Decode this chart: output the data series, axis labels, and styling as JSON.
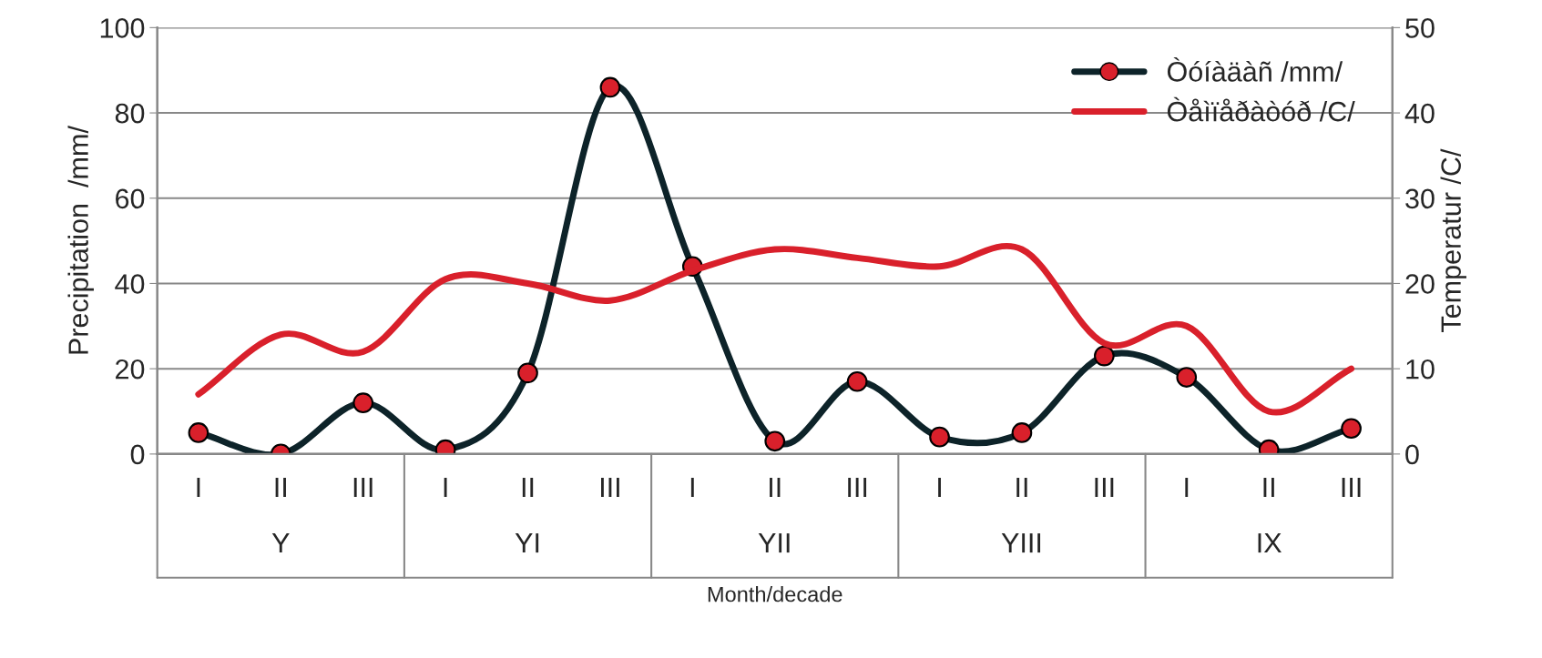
{
  "chart_data": {
    "type": "line",
    "xlabel": "Month/decade",
    "ylabel": "Precipitation  /mm/",
    "y2label": "Temperatur /C/",
    "categories": [
      "I",
      "II",
      "III",
      "I",
      "II",
      "III",
      "I",
      "II",
      "III",
      "I",
      "II",
      "III",
      "I",
      "II",
      "III"
    ],
    "series": [
      {
        "name": "Òóíàäàñ /mm/",
        "color": "#0d2329",
        "marker": "circle",
        "values": [
          5,
          0,
          12,
          1,
          19,
          86,
          44,
          3,
          17,
          4,
          5,
          23,
          18,
          1,
          6
        ]
      },
      {
        "name": "Òåìïåðàòóð /C/",
        "color": "#d9202b",
        "marker": "none",
        "axis": "y2",
        "values": [
          7,
          14,
          12,
          20.5,
          20,
          18,
          21.5,
          24,
          23,
          22,
          24,
          13,
          15,
          5,
          10
        ]
      }
    ],
    "annotations": [
      "Y",
      "YI",
      "YII",
      "YIII",
      "IX"
    ],
    "ylim": [
      0,
      100
    ],
    "yticks": [
      0,
      20,
      40,
      60,
      80,
      100
    ],
    "y2lim": [
      0,
      50
    ],
    "y2ticks": [
      0,
      10,
      20,
      30,
      40,
      50
    ],
    "grid": "y",
    "legend": "top right"
  }
}
